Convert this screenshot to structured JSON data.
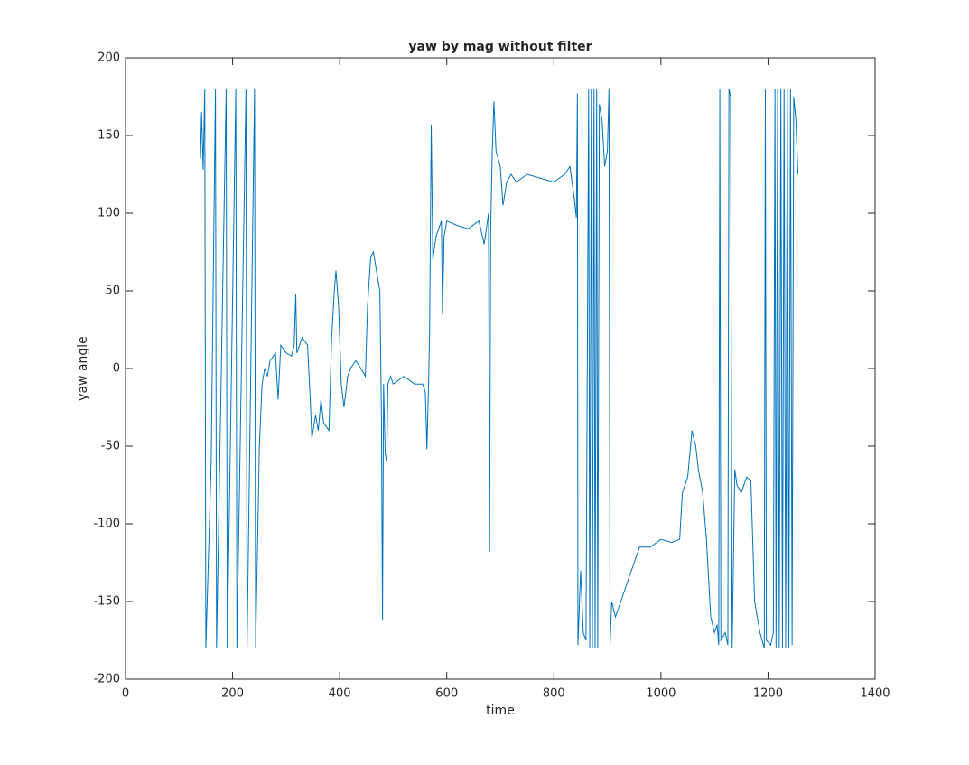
{
  "chart_data": {
    "type": "line",
    "title": "yaw by mag without filter",
    "x_label": "time",
    "y_label": "yaw angle",
    "color": "#0072bd",
    "x": [
      140,
      142,
      145,
      148,
      150,
      160,
      168,
      170,
      188,
      190,
      206,
      208,
      225,
      227,
      241,
      243,
      250,
      255,
      260,
      265,
      270,
      280,
      285,
      290,
      300,
      310,
      315,
      318,
      320,
      330,
      340,
      345,
      348,
      355,
      360,
      365,
      370,
      380,
      385,
      390,
      393,
      398,
      403,
      408,
      415,
      420,
      430,
      440,
      448,
      452,
      458,
      463,
      470,
      475,
      478,
      480,
      482,
      485,
      488,
      490,
      495,
      500,
      520,
      540,
      555,
      560,
      563,
      566,
      568,
      571,
      574,
      580,
      590,
      592,
      595,
      600,
      620,
      640,
      660,
      670,
      678,
      680,
      682,
      685,
      688,
      692,
      700,
      705,
      712,
      720,
      730,
      750,
      780,
      800,
      820,
      830,
      838,
      842,
      844,
      845,
      850,
      855,
      860,
      865,
      867,
      870,
      872,
      875,
      877,
      880,
      882,
      885,
      890,
      895,
      900,
      903,
      905,
      908,
      915,
      925,
      935,
      950,
      960,
      980,
      1000,
      1020,
      1035,
      1040,
      1050,
      1058,
      1065,
      1070,
      1078,
      1085,
      1093,
      1100,
      1105,
      1108,
      1110,
      1112,
      1120,
      1125,
      1127,
      1130,
      1133,
      1138,
      1142,
      1150,
      1160,
      1168,
      1175,
      1185,
      1193,
      1195,
      1197,
      1205,
      1210,
      1213,
      1215,
      1218,
      1221,
      1224,
      1227,
      1230,
      1233,
      1236,
      1239,
      1242,
      1245,
      1248,
      1252,
      1256
    ],
    "values": [
      135,
      165,
      128,
      180,
      -180,
      -60,
      180,
      -180,
      180,
      -180,
      180,
      -180,
      180,
      -180,
      180,
      -180,
      -50,
      -10,
      0,
      -5,
      5,
      10,
      -20,
      15,
      10,
      8,
      15,
      48,
      10,
      20,
      15,
      -20,
      -45,
      -30,
      -40,
      -20,
      -35,
      -40,
      20,
      50,
      63,
      40,
      -10,
      -25,
      -5,
      0,
      5,
      0,
      -5,
      40,
      72,
      75,
      60,
      50,
      -30,
      -162,
      -10,
      -55,
      -60,
      -10,
      -5,
      -10,
      -5,
      -10,
      -10,
      -15,
      -52,
      -10,
      25,
      157,
      70,
      85,
      95,
      35,
      85,
      95,
      92,
      90,
      95,
      80,
      100,
      -118,
      90,
      140,
      172,
      140,
      130,
      105,
      120,
      125,
      120,
      125,
      122,
      120,
      125,
      130,
      110,
      97,
      177,
      -178,
      -130,
      -170,
      -175,
      180,
      -180,
      180,
      -180,
      180,
      -180,
      180,
      -180,
      170,
      160,
      130,
      140,
      180,
      -178,
      -150,
      -160,
      -150,
      -140,
      -125,
      -115,
      -115,
      -110,
      -112,
      -110,
      -80,
      -70,
      -40,
      -50,
      -65,
      -80,
      -110,
      -160,
      -170,
      -165,
      -178,
      180,
      -175,
      -170,
      -178,
      180,
      175,
      -180,
      -65,
      -75,
      -80,
      -70,
      -72,
      -150,
      -170,
      -180,
      180,
      -175,
      -178,
      -170,
      180,
      -180,
      180,
      -180,
      180,
      -180,
      180,
      -180,
      180,
      -180,
      180,
      -178,
      175,
      160,
      125
    ],
    "xlim": [
      0,
      1400
    ],
    "xticks": [
      0,
      200,
      400,
      600,
      800,
      1000,
      1200,
      1400
    ],
    "ylim": [
      -200,
      200
    ],
    "yticks": [
      -200,
      -150,
      -100,
      -50,
      0,
      50,
      100,
      150,
      200
    ]
  }
}
